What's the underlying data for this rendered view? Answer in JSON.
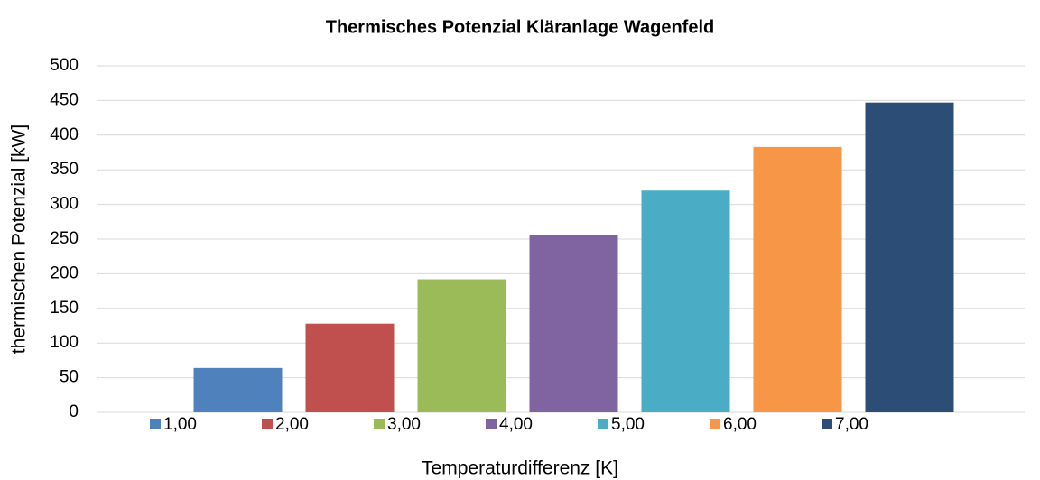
{
  "chart_data": {
    "type": "bar",
    "title": "Thermisches Potenzial Kläranlage Wagenfeld",
    "x_label": "Temperaturdifferenz [K]",
    "y_label": "thermischen Potenzial [kW]",
    "categories": [
      null
    ],
    "series": [
      {
        "name": "1,00",
        "color": "#4f81bd",
        "values": [
          64
        ]
      },
      {
        "name": "2,00",
        "color": "#c0504d",
        "values": [
          128
        ]
      },
      {
        "name": "3,00",
        "color": "#9bbb59",
        "values": [
          192
        ]
      },
      {
        "name": "4,00",
        "color": "#8064a2",
        "values": [
          256
        ]
      },
      {
        "name": "5,00",
        "color": "#4bacc6",
        "values": [
          320
        ]
      },
      {
        "name": "6,00",
        "color": "#f79646",
        "values": [
          383
        ]
      },
      {
        "name": "7,00",
        "color": "#2c4d75",
        "values": [
          447
        ]
      }
    ],
    "ylim": [
      0,
      500
    ],
    "yticks": [
      0,
      50,
      100,
      150,
      200,
      250,
      300,
      350,
      400,
      450,
      500
    ],
    "grid": true,
    "legend": "bottom"
  }
}
